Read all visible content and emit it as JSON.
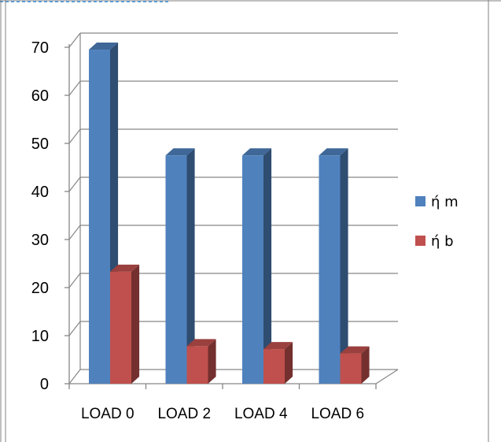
{
  "chart_data": {
    "type": "bar",
    "categories": [
      "LOAD 0",
      "LOAD 2",
      "LOAD 4",
      "LOAD 6"
    ],
    "series": [
      {
        "name": "ή m",
        "values": [
          69.5,
          47.5,
          47.5,
          47.5
        ],
        "color": "#4f81bd"
      },
      {
        "name": "ή b",
        "values": [
          23.3,
          7.8,
          7.2,
          6.3
        ],
        "color": "#c0504d"
      }
    ],
    "ylim": [
      0,
      70
    ],
    "yticks": [
      "0",
      "10",
      "20",
      "30",
      "40",
      "50",
      "60",
      "70"
    ],
    "grid": true,
    "legend": "right",
    "style": "3d-clustered-column",
    "title": "",
    "xlabel": "",
    "ylabel": ""
  }
}
